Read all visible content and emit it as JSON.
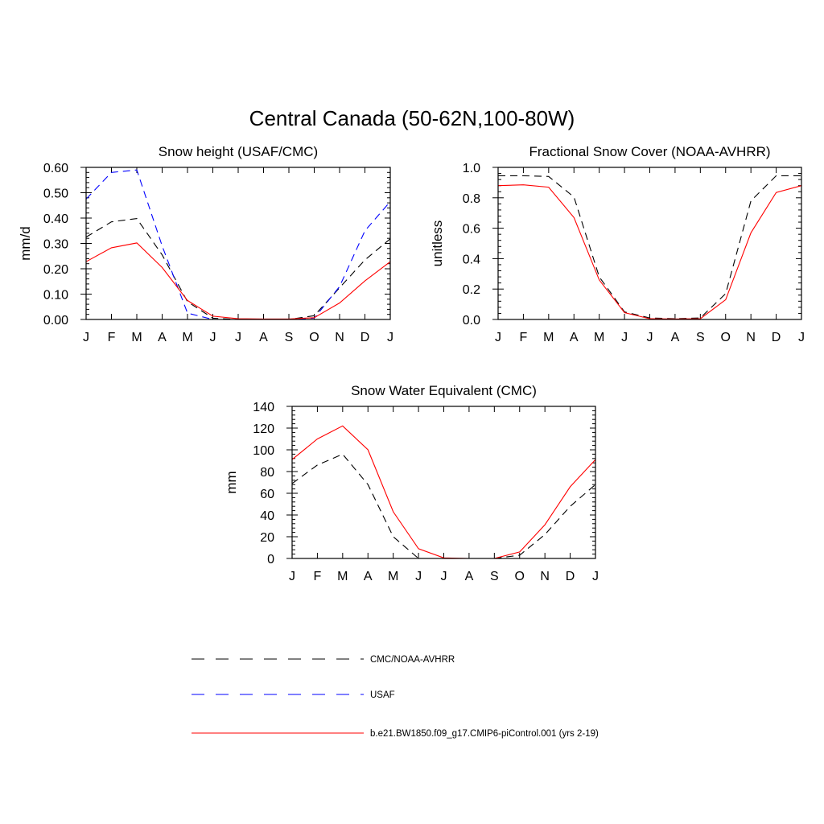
{
  "figure": {
    "title": "Central Canada (50-62N,100-80W)"
  },
  "colors": {
    "obs_black": "#000000",
    "usaf_blue": "#0000ff",
    "model_red": "#ff0000"
  },
  "legend": {
    "placement": "bottom",
    "entries": [
      {
        "label": "CMC/NOAA-AVHRR",
        "color": "#000000",
        "style": "dashed"
      },
      {
        "label": "USAF",
        "color": "#0000ff",
        "style": "dashed"
      },
      {
        "label": "b.e21.BW1850.f09_g17.CMIP6-piControl.001 (yrs 2-19)",
        "color": "#ff0000",
        "style": "solid"
      }
    ]
  },
  "chart_data": [
    {
      "id": "snow-height",
      "type": "line",
      "title": "Snow height (USAF/CMC)",
      "xlabel": "",
      "ylabel": "mm/d",
      "categories": [
        "J",
        "F",
        "M",
        "A",
        "M",
        "J",
        "J",
        "A",
        "S",
        "O",
        "N",
        "D",
        "J"
      ],
      "ylim": [
        0,
        0.6
      ],
      "yticks": [
        0,
        0.1,
        0.2,
        0.3,
        0.4,
        0.5,
        0.6
      ],
      "ytick_labels": [
        "0.00",
        "0.10",
        "0.20",
        "0.30",
        "0.40",
        "0.50",
        "0.60"
      ],
      "grid": false,
      "series": [
        {
          "name": "CMC/NOAA-AVHRR",
          "color": "#000000",
          "style": "dashed",
          "values": [
            0.325,
            0.385,
            0.398,
            0.255,
            0.07,
            0.005,
            0.0,
            0.0,
            0.0,
            0.015,
            0.125,
            0.235,
            0.318
          ]
        },
        {
          "name": "USAF",
          "color": "#0000ff",
          "style": "dashed",
          "values": [
            0.475,
            0.58,
            0.59,
            0.29,
            0.025,
            0.0,
            0.0,
            0.0,
            0.0,
            0.005,
            0.13,
            0.35,
            0.465
          ]
        },
        {
          "name": "b.e21.BW1850.f09_g17.CMIP6-piControl.001 (yrs 2-19)",
          "color": "#ff0000",
          "style": "solid",
          "values": [
            0.228,
            0.283,
            0.302,
            0.205,
            0.075,
            0.013,
            0.003,
            0.002,
            0.002,
            0.007,
            0.065,
            0.152,
            0.228
          ]
        }
      ]
    },
    {
      "id": "snow-cover",
      "type": "line",
      "title": "Fractional Snow Cover (NOAA-AVHRR)",
      "xlabel": "",
      "ylabel": "unitless",
      "categories": [
        "J",
        "F",
        "M",
        "A",
        "M",
        "J",
        "J",
        "A",
        "S",
        "O",
        "N",
        "D",
        "J"
      ],
      "ylim": [
        0,
        1.0
      ],
      "yticks": [
        0,
        0.2,
        0.4,
        0.6,
        0.8,
        1.0
      ],
      "ytick_labels": [
        "0.0",
        "0.2",
        "0.4",
        "0.6",
        "0.8",
        "1.0"
      ],
      "grid": false,
      "series": [
        {
          "name": "CMC/NOAA-AVHRR",
          "color": "#000000",
          "style": "dashed",
          "values": [
            0.945,
            0.945,
            0.94,
            0.805,
            0.28,
            0.05,
            0.01,
            0.005,
            0.01,
            0.17,
            0.78,
            0.945,
            0.945
          ]
        },
        {
          "name": "b.e21.BW1850.f09_g17.CMIP6-piControl.001 (yrs 2-19)",
          "color": "#ff0000",
          "style": "solid",
          "values": [
            0.88,
            0.885,
            0.87,
            0.67,
            0.26,
            0.045,
            0.005,
            0.003,
            0.005,
            0.13,
            0.57,
            0.835,
            0.88
          ]
        }
      ]
    },
    {
      "id": "swe",
      "type": "line",
      "title": "Snow Water Equivalent (CMC)",
      "xlabel": "",
      "ylabel": "mm",
      "categories": [
        "J",
        "F",
        "M",
        "A",
        "M",
        "J",
        "J",
        "A",
        "S",
        "O",
        "N",
        "D",
        "J"
      ],
      "ylim": [
        0,
        140
      ],
      "yticks": [
        0,
        20,
        40,
        60,
        80,
        100,
        120,
        140
      ],
      "ytick_labels": [
        "0",
        "20",
        "40",
        "60",
        "80",
        "100",
        "120",
        "140"
      ],
      "grid": false,
      "series": [
        {
          "name": "CMC/NOAA-AVHRR",
          "color": "#000000",
          "style": "dashed",
          "values": [
            69,
            86,
            96,
            68,
            20,
            0,
            0,
            0,
            0,
            3,
            22,
            48,
            68
          ]
        },
        {
          "name": "b.e21.BW1850.f09_g17.CMIP6-piControl.001 (yrs 2-19)",
          "color": "#ff0000",
          "style": "solid",
          "values": [
            91,
            110,
            122,
            100,
            43,
            9,
            0.5,
            0,
            0,
            6,
            31,
            66,
            91
          ]
        }
      ]
    }
  ]
}
